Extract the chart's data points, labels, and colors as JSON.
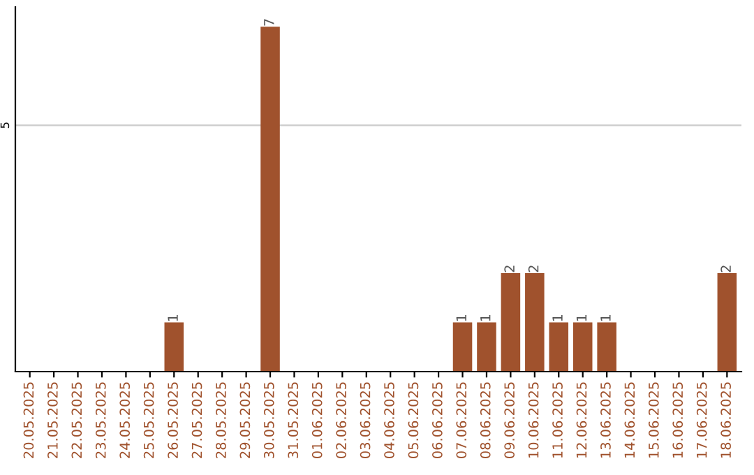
{
  "chart_data": {
    "type": "bar",
    "categories": [
      "20.05.2025",
      "21.05.2025",
      "22.05.2025",
      "23.05.2025",
      "24.05.2025",
      "25.05.2025",
      "26.05.2025",
      "27.05.2025",
      "28.05.2025",
      "29.05.2025",
      "30.05.2025",
      "31.05.2025",
      "01.06.2025",
      "02.06.2025",
      "03.06.2025",
      "04.06.2025",
      "05.06.2025",
      "06.06.2025",
      "07.06.2025",
      "08.06.2025",
      "09.06.2025",
      "10.06.2025",
      "11.06.2025",
      "12.06.2025",
      "13.06.2025",
      "14.06.2025",
      "15.06.2025",
      "16.06.2025",
      "17.06.2025",
      "18.06.2025"
    ],
    "values": [
      0,
      0,
      0,
      0,
      0,
      0,
      1,
      0,
      0,
      0,
      7,
      0,
      0,
      0,
      0,
      0,
      0,
      0,
      1,
      1,
      2,
      2,
      1,
      1,
      1,
      0,
      0,
      0,
      0,
      2
    ],
    "value_labels": [
      null,
      null,
      null,
      null,
      null,
      null,
      "1",
      null,
      null,
      null,
      "7",
      null,
      null,
      null,
      null,
      null,
      null,
      null,
      "1",
      "1",
      "2",
      "2",
      "1",
      "1",
      "1",
      null,
      null,
      null,
      null,
      "2"
    ],
    "color": "#a0522d",
    "ylim": [
      0,
      7.4
    ],
    "yticks": [
      5
    ],
    "grid": "y"
  }
}
